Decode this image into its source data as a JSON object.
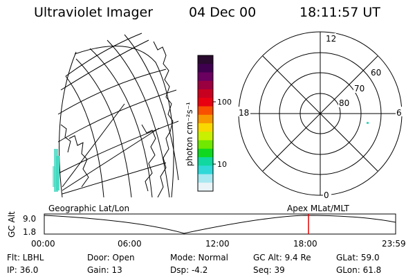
{
  "header": {
    "instrument": "Ultraviolet Imager",
    "date": "04 Dec 00",
    "time": "18:11:57 UT"
  },
  "colorbar": {
    "unit_label": "photon cm⁻²s⁻¹",
    "ticks": [
      "100",
      "10"
    ],
    "colors": [
      "#2a0a2e",
      "#400050",
      "#6a0060",
      "#9a0040",
      "#c80020",
      "#e80010",
      "#f85000",
      "#f89800",
      "#f8d800",
      "#c8f000",
      "#70e800",
      "#10d820",
      "#10d8a0",
      "#30d8d8",
      "#a8e8f0",
      "#e8f4f8"
    ]
  },
  "polar_plot": {
    "labels": {
      "top": "12",
      "bottom": "0",
      "left": "18",
      "right": "6",
      "ring_60": "60",
      "ring_70": "70",
      "ring_80": "80"
    }
  },
  "strip": {
    "left_caption": "Geographic Lat/Lon",
    "right_caption": "Apex MLat/MLT",
    "y_axis_label": "GC Alt",
    "y_max": "9.0",
    "y_min": "1.8",
    "x_ticks": [
      "00:00",
      "06:00",
      "12:00",
      "18:00",
      "23:59"
    ],
    "marker_time": "18:11",
    "marker_color": "#e00000"
  },
  "footer": {
    "filter": "Flt: LBHL",
    "door": "Door: Open",
    "mode": "Mode: Normal",
    "gc_alt": "GC Alt: 9.4 Re",
    "glat": "GLat: 59.0",
    "ip": "IP: 36.0",
    "gain": "Gain: 13",
    "dsp": "Dsp:  -4.2",
    "seq": "Seq: 39",
    "glon": "GLon: 61.8"
  }
}
